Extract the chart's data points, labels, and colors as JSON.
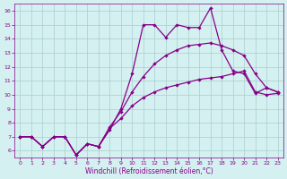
{
  "xlabel": "Windchill (Refroidissement éolien,°C)",
  "xlim": [
    -0.5,
    23.5
  ],
  "ylim": [
    5.5,
    16.5
  ],
  "xticks": [
    0,
    1,
    2,
    3,
    4,
    5,
    6,
    7,
    8,
    9,
    10,
    11,
    12,
    13,
    14,
    15,
    16,
    17,
    18,
    19,
    20,
    21,
    22,
    23
  ],
  "yticks": [
    6,
    7,
    8,
    9,
    10,
    11,
    12,
    13,
    14,
    15,
    16
  ],
  "bg_color": "#d4f0f0",
  "line_color": "#880088",
  "grid_color": "#a8cece",
  "line1_y": [
    7.0,
    7.0,
    6.3,
    7.0,
    7.0,
    5.7,
    6.5,
    6.3,
    7.5,
    9.0,
    11.5,
    15.0,
    15.0,
    14.1,
    15.0,
    14.8,
    14.8,
    16.2,
    13.2,
    11.7,
    11.5,
    10.1,
    10.5,
    10.2
  ],
  "line2_y": [
    7.0,
    7.0,
    6.3,
    7.0,
    7.0,
    5.7,
    6.5,
    6.3,
    7.7,
    8.8,
    10.2,
    11.3,
    12.2,
    12.8,
    13.2,
    13.5,
    13.6,
    13.7,
    13.5,
    13.2,
    12.8,
    11.5,
    10.5,
    10.2
  ],
  "line3_y": [
    7.0,
    7.0,
    6.3,
    7.0,
    7.0,
    5.7,
    6.5,
    6.3,
    7.6,
    8.3,
    9.2,
    9.8,
    10.2,
    10.5,
    10.7,
    10.9,
    11.1,
    11.2,
    11.3,
    11.5,
    11.7,
    10.2,
    10.0,
    10.1
  ],
  "line_lw": 0.9,
  "marker_size": 2.2,
  "tick_labelsize": 4.5,
  "xlabel_fontsize": 5.5
}
